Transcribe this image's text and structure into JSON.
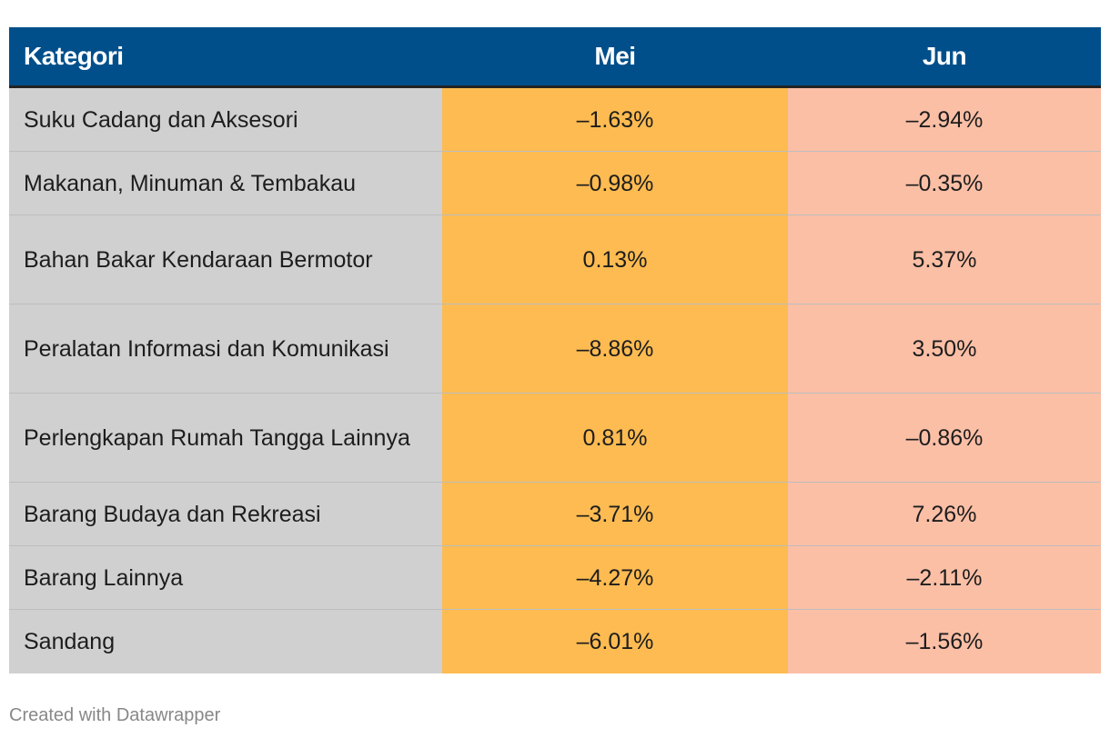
{
  "chart_data": {
    "type": "table",
    "columns": [
      "Kategori",
      "Mei",
      "Jun"
    ],
    "rows": [
      {
        "kategori": "Suku Cadang dan Aksesori",
        "mei": "–1.63%",
        "jun": "–2.94%"
      },
      {
        "kategori": "Makanan, Minuman & Tembakau",
        "mei": "–0.98%",
        "jun": "–0.35%"
      },
      {
        "kategori": "Bahan Bakar Kendaraan Bermotor",
        "mei": "0.13%",
        "jun": "5.37%"
      },
      {
        "kategori": "Peralatan Informasi dan Komunikasi",
        "mei": "–8.86%",
        "jun": "3.50%"
      },
      {
        "kategori": "Perlengkapan Rumah Tangga Lainnya",
        "mei": "0.81%",
        "jun": "–0.86%"
      },
      {
        "kategori": "Barang Budaya dan Rekreasi",
        "mei": "–3.71%",
        "jun": "7.26%"
      },
      {
        "kategori": "Barang Lainnya",
        "mei": "–4.27%",
        "jun": "–2.11%"
      },
      {
        "kategori": "Sandang",
        "mei": "–6.01%",
        "jun": "–1.56%"
      }
    ]
  },
  "colors": {
    "header_bg": "#004f8b",
    "kategori_col_bg": "#d0d0d0",
    "mei_col_bg": "#fdbb51",
    "jun_col_bg": "#fbbfa6"
  },
  "footer": {
    "credit": "Created with Datawrapper"
  }
}
